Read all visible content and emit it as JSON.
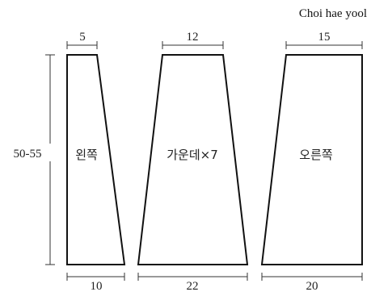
{
  "author": "Choi hae yool",
  "height_label": "50-55",
  "panels": [
    {
      "label": "왼쪽",
      "top_width": "5",
      "bottom_width": "10"
    },
    {
      "label": "가운데×7",
      "top_width": "12",
      "bottom_width": "22"
    },
    {
      "label": "오른쪽",
      "top_width": "15",
      "bottom_width": "20"
    }
  ]
}
